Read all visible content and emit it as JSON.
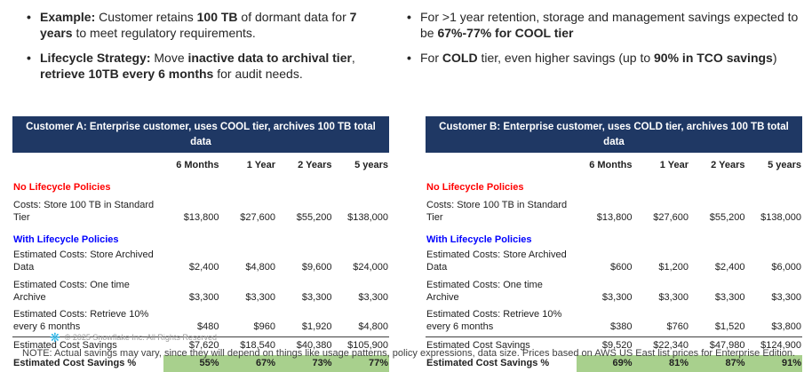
{
  "colors": {
    "header_bg": "#1f3864",
    "section_red": "#ff0000",
    "section_blue": "#0000ff",
    "highlight": "#a8d08d",
    "snowflake_blue": "#29b5e8"
  },
  "bullets_left": [
    {
      "parts": [
        {
          "text": "Example:",
          "bold": true
        },
        {
          "text": " Customer retains ",
          "bold": false
        },
        {
          "text": "100 TB",
          "bold": true
        },
        {
          "text": " of dormant data for ",
          "bold": false
        },
        {
          "text": "7 years",
          "bold": true
        },
        {
          "text": " to meet regulatory requirements.",
          "bold": false
        }
      ]
    },
    {
      "parts": [
        {
          "text": "Lifecycle Strategy:",
          "bold": true
        },
        {
          "text": " Move ",
          "bold": false
        },
        {
          "text": "inactive data to archival tier",
          "bold": true
        },
        {
          "text": ", ",
          "bold": false
        },
        {
          "text": "retrieve 10TB every 6 months",
          "bold": true
        },
        {
          "text": " for audit needs.",
          "bold": false
        }
      ]
    }
  ],
  "bullets_right": [
    {
      "parts": [
        {
          "text": "For >1 year retention, storage and management savings expected to be ",
          "bold": false
        },
        {
          "text": "67%-77% for COOL tier",
          "bold": true
        }
      ]
    },
    {
      "parts": [
        {
          "text": "For ",
          "bold": false
        },
        {
          "text": "COLD",
          "bold": true
        },
        {
          "text": " tier, even higher savings (up to ",
          "bold": false
        },
        {
          "text": "90% in TCO savings",
          "bold": true
        },
        {
          "text": ")",
          "bold": false
        }
      ]
    }
  ],
  "tables": [
    {
      "title": "Customer A: Enterprise customer, uses COOL tier, archives 100 TB total data",
      "columns": [
        "6 Months",
        "1 Year",
        "2 Years",
        "5 years"
      ],
      "rows": [
        {
          "label": "No Lifecycle Policies",
          "style": "red"
        },
        {
          "label": "Costs: Store 100 TB in Standard Tier",
          "values": [
            "$13,800",
            "$27,600",
            "$55,200",
            "$138,000"
          ]
        },
        {
          "label": "With Lifecycle Policies",
          "style": "blue"
        },
        {
          "label": "Estimated Costs: Store Archived Data",
          "values": [
            "$2,400",
            "$4,800",
            "$9,600",
            "$24,000"
          ]
        },
        {
          "label": "Estimated Costs: One time Archive",
          "values": [
            "$3,300",
            "$3,300",
            "$3,300",
            "$3,300"
          ]
        },
        {
          "label": "Estimated Costs: Retrieve 10% every 6 months",
          "values": [
            "$480",
            "$960",
            "$1,920",
            "$4,800"
          ]
        },
        {
          "label": "Estimated Cost Savings",
          "values": [
            "$7,620",
            "$18,540",
            "$40,380",
            "$105,900"
          ],
          "border_top": true
        },
        {
          "label": "Estimated Cost Savings %",
          "values": [
            "55%",
            "67%",
            "73%",
            "77%"
          ],
          "style": "total",
          "highlight": true
        }
      ]
    },
    {
      "title": "Customer B: Enterprise customer, uses COLD tier, archives 100 TB total data",
      "columns": [
        "6 Months",
        "1 Year",
        "2 Years",
        "5 years"
      ],
      "rows": [
        {
          "label": "No Lifecycle Policies",
          "style": "red"
        },
        {
          "label": "Costs: Store 100 TB in Standard Tier",
          "values": [
            "$13,800",
            "$27,600",
            "$55,200",
            "$138,000"
          ]
        },
        {
          "label": "With Lifecycle Policies",
          "style": "blue"
        },
        {
          "label": "Estimated Costs: Store Archived Data",
          "values": [
            "$600",
            "$1,200",
            "$2,400",
            "$6,000"
          ]
        },
        {
          "label": "Estimated Costs: One time Archive",
          "values": [
            "$3,300",
            "$3,300",
            "$3,300",
            "$3,300"
          ]
        },
        {
          "label": "Estimated Costs: Retrieve 10% every 6 months",
          "values": [
            "$380",
            "$760",
            "$1,520",
            "$3,800"
          ]
        },
        {
          "label": "Estimated Cost Savings",
          "values": [
            "$9,520",
            "$22,340",
            "$47,980",
            "$124,900"
          ],
          "border_top": true
        },
        {
          "label": "Estimated Cost Savings %",
          "values": [
            "69%",
            "81%",
            "87%",
            "91%"
          ],
          "style": "total",
          "highlight": true
        }
      ]
    }
  ],
  "footer": {
    "snowflake_icon": "❋",
    "copyright": "© 2025 Snowflake Inc. All Rights Reserved",
    "note": "NOTE: Actual savings may vary, since they will depend on things like usage patterns,  policy expressions, data size. Prices based on AWS US East list prices for Enterprise Edition."
  }
}
